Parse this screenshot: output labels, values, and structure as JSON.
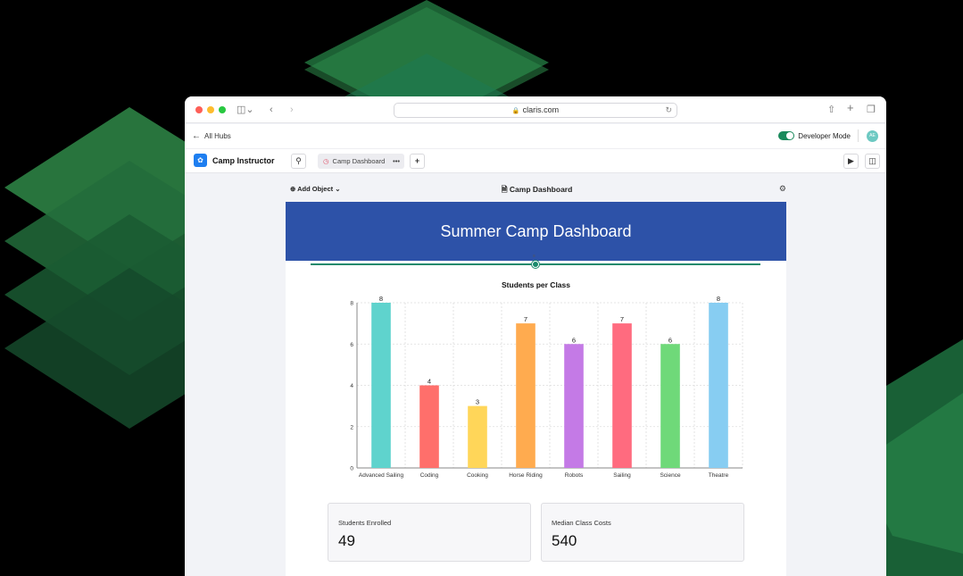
{
  "browser": {
    "url": "claris.com"
  },
  "hub": {
    "back_label": "All Hubs",
    "dev_mode_label": "Developer Mode",
    "avatar_initials": "AE"
  },
  "app": {
    "name": "Camp Instructor",
    "tab_label": "Camp Dashboard",
    "tab_more": "•••",
    "add_tab": "+"
  },
  "layout": {
    "add_object_label": "Add Object",
    "title": "Camp Dashboard"
  },
  "dashboard": {
    "header_title": "Summer Camp Dashboard"
  },
  "chart_data": {
    "type": "bar",
    "title": "Students per Class",
    "categories": [
      "Advanced Sailing",
      "Coding",
      "Cooking",
      "Horse Riding",
      "Robots",
      "Sailing",
      "Science",
      "Theatre"
    ],
    "values": [
      8,
      4,
      3,
      7,
      6,
      7,
      6,
      8
    ],
    "colors": [
      "#5fd3cd",
      "#ff6f6b",
      "#ffd659",
      "#ffab4f",
      "#c47ae6",
      "#ff6b7f",
      "#6fd979",
      "#87cdf2"
    ],
    "ylim": [
      0,
      8
    ],
    "yticks": [
      0,
      2,
      4,
      6,
      8
    ],
    "xlabel": "",
    "ylabel": "",
    "grid": true
  },
  "cards": [
    {
      "label": "Students Enrolled",
      "value": "49"
    },
    {
      "label": "Median Class Costs",
      "value": "540"
    }
  ],
  "colors": {
    "header": "#2d52a8",
    "accent": "#1a8a6c"
  }
}
